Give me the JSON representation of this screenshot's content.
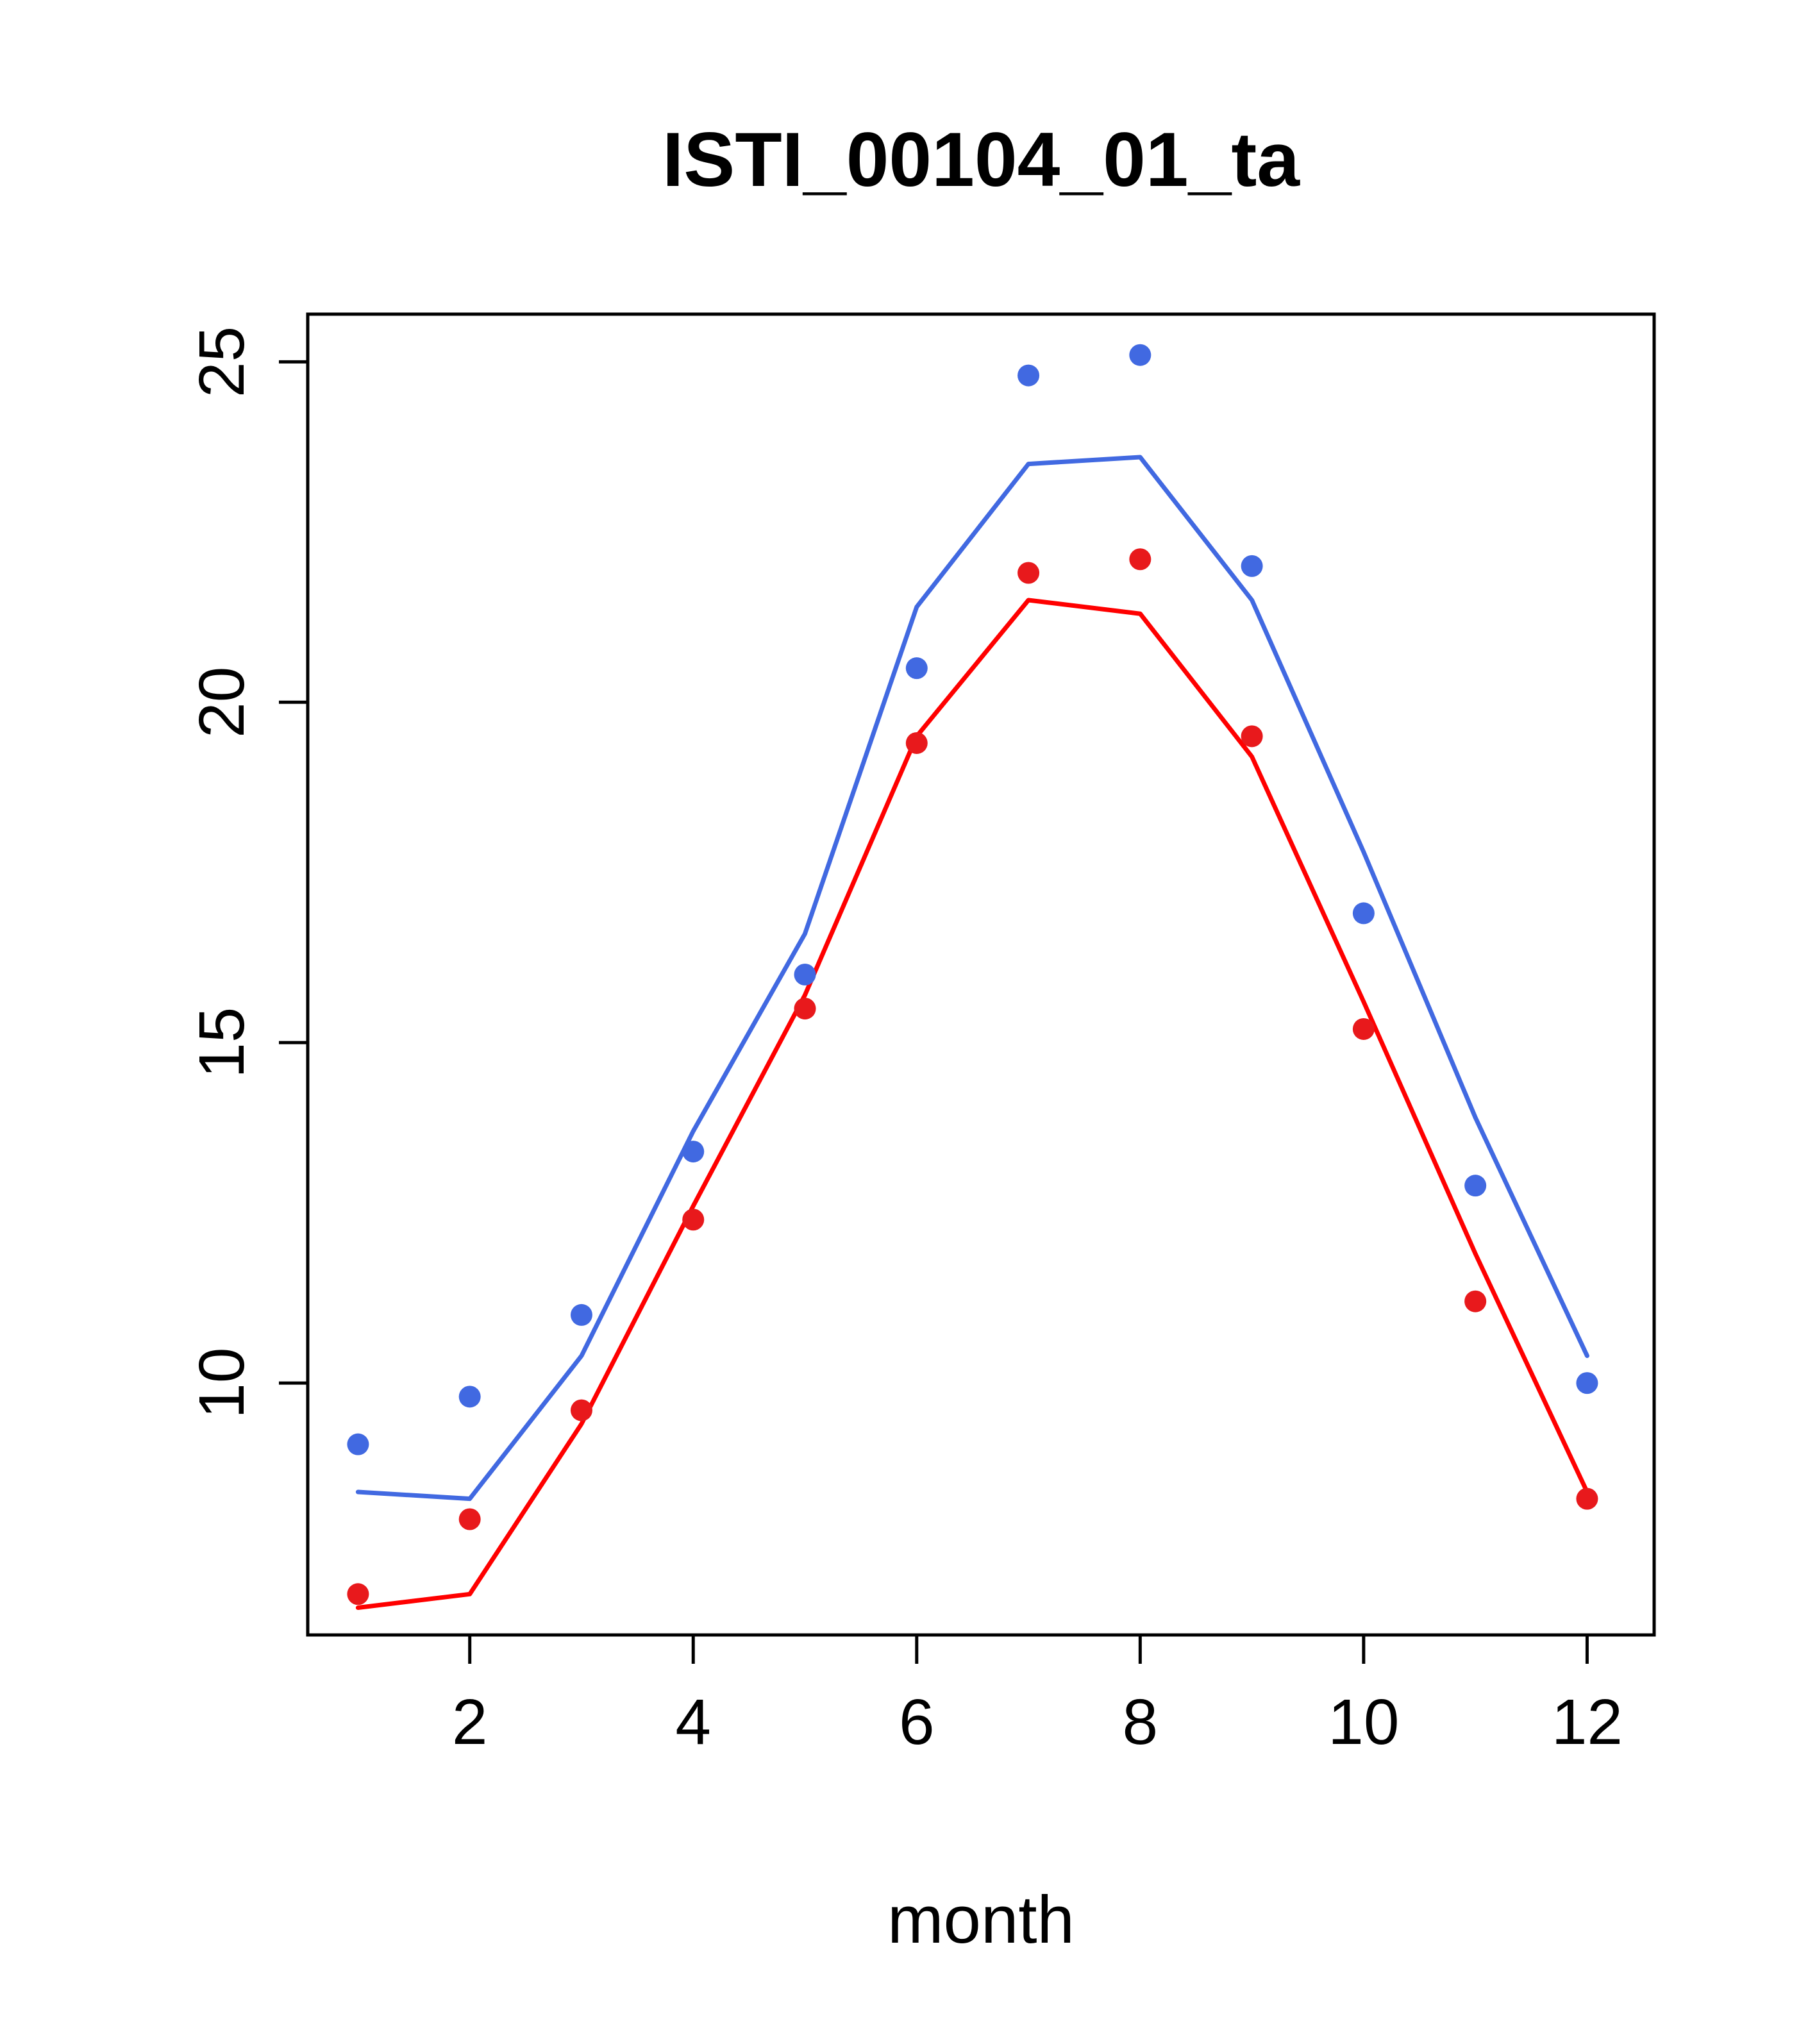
{
  "chart_data": {
    "type": "line",
    "title": "ISTI_00104_01_ta",
    "xlabel": "month",
    "ylabel": "",
    "x": [
      1,
      2,
      3,
      4,
      5,
      6,
      7,
      8,
      9,
      10,
      11,
      12
    ],
    "x_ticks": [
      2,
      4,
      6,
      8,
      10,
      12
    ],
    "y_ticks": [
      10,
      15,
      20,
      25
    ],
    "xlim": [
      0.55,
      12.6
    ],
    "ylim": [
      6.3,
      25.7
    ],
    "grid": false,
    "legend": "none",
    "colors": {
      "blue": "#4169E1",
      "red": "#FF0000",
      "red_points": "#E8191C",
      "axis": "#000000"
    },
    "series": [
      {
        "name": "blue-line",
        "style": "line",
        "color": "#4169E1",
        "values": [
          8.4,
          8.3,
          10.4,
          13.7,
          16.6,
          21.4,
          23.5,
          23.6,
          21.5,
          17.8,
          13.9,
          10.4
        ]
      },
      {
        "name": "red-line",
        "style": "line",
        "color": "#FF0000",
        "values": [
          6.7,
          6.9,
          9.4,
          12.6,
          15.7,
          19.5,
          21.5,
          21.3,
          19.2,
          15.6,
          11.9,
          8.4
        ]
      },
      {
        "name": "blue-points",
        "style": "points",
        "color": "#4169E1",
        "values": [
          9.1,
          9.8,
          11.0,
          13.4,
          16.0,
          20.5,
          24.8,
          25.1,
          22.0,
          16.9,
          12.9,
          10.0
        ]
      },
      {
        "name": "red-points",
        "style": "points",
        "color": "#E8191C",
        "values": [
          6.9,
          8.0,
          9.6,
          12.4,
          15.5,
          19.4,
          21.9,
          22.1,
          19.5,
          15.2,
          11.2,
          8.3
        ]
      }
    ]
  }
}
